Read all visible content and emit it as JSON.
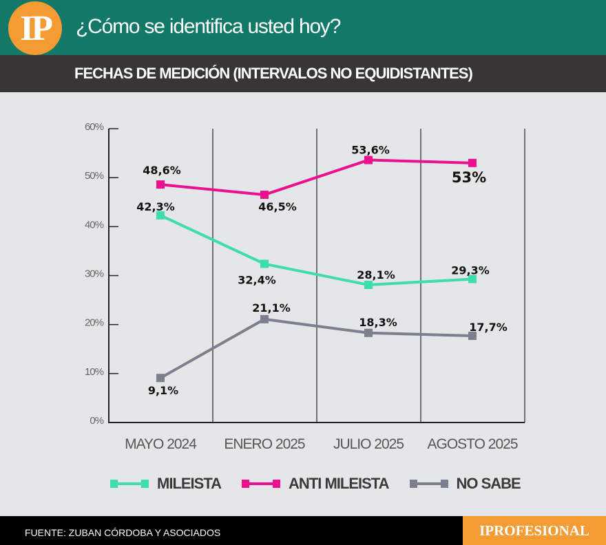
{
  "header": {
    "logo": "IP",
    "title": "¿Cómo se identifica usted hoy?",
    "subtitle": "FECHAS DE MEDICIÓN (INTERVALOS NO EQUIDISTANTES)"
  },
  "footer": {
    "source": "FUENTE: ZUBAN CÓRDOBA Y ASOCIADOS",
    "brand": "IPROFESIONAL"
  },
  "chart_data": {
    "type": "line",
    "categories": [
      "MAYO 2024",
      "ENERO 2025",
      "JULIO 2025",
      "AGOSTO 2025"
    ],
    "ylim": [
      0,
      60
    ],
    "yticks": [
      "0%",
      "10%",
      "20%",
      "30%",
      "40%",
      "50%",
      "60%"
    ],
    "legend_position": "bottom",
    "series": [
      {
        "name": "MILEISTA",
        "color": "#3fdcae",
        "values": [
          42.3,
          32.4,
          28.1,
          29.3
        ],
        "labels": [
          "42,3%",
          "32,4%",
          "28,1%",
          "29,3%"
        ]
      },
      {
        "name": "ANTI MILEISTA",
        "color": "#ec0f8f",
        "values": [
          48.6,
          46.5,
          53.6,
          53
        ],
        "labels": [
          "48,6%",
          "46,5%",
          "53,6%",
          "53%"
        ]
      },
      {
        "name": "NO SABE",
        "color": "#7b7f8e",
        "values": [
          9.1,
          21.1,
          18.3,
          17.7
        ],
        "labels": [
          "9,1%",
          "21,1%",
          "18,3%",
          "17,7%"
        ]
      }
    ]
  }
}
